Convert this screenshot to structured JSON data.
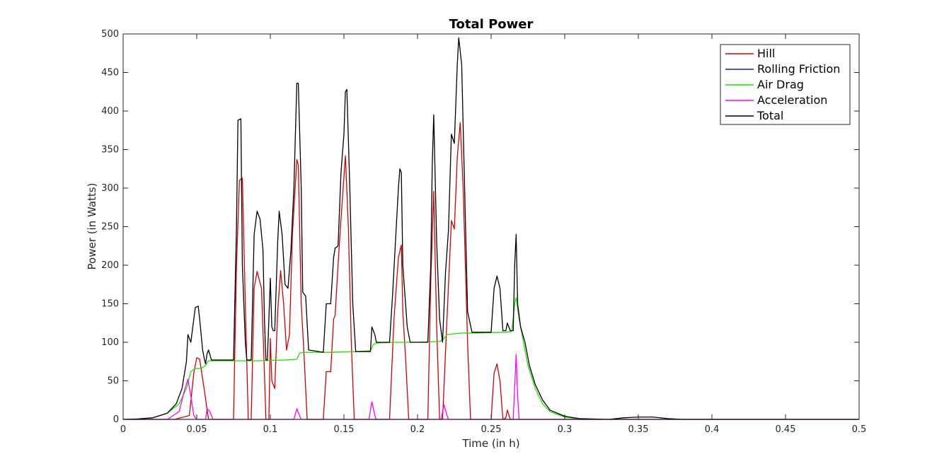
{
  "chart_data": {
    "type": "line",
    "title": "Total Power",
    "xlabel": "Time (in h)",
    "ylabel": "Power (in Watts)",
    "xlim": [
      0,
      0.5
    ],
    "ylim": [
      0,
      500
    ],
    "xticks": [
      0,
      0.05,
      0.1,
      0.15,
      0.2,
      0.25,
      0.3,
      0.35,
      0.4,
      0.45,
      0.5
    ],
    "xtick_labels": [
      "0",
      "0.05",
      "0.1",
      "0.15",
      "0.2",
      "0.25",
      "0.3",
      "0.35",
      "0.4",
      "0.45",
      "0.5"
    ],
    "yticks": [
      0,
      50,
      100,
      150,
      200,
      250,
      300,
      350,
      400,
      450,
      500
    ],
    "ytick_labels": [
      "0",
      "50",
      "100",
      "150",
      "200",
      "250",
      "300",
      "350",
      "400",
      "450",
      "500"
    ],
    "grid": false,
    "legend_position": "top-right",
    "series": [
      {
        "name": "Hill",
        "color": "#d40000",
        "points": [
          [
            0,
            0
          ],
          [
            0.035,
            0
          ],
          [
            0.045,
            5
          ],
          [
            0.048,
            60
          ],
          [
            0.05,
            80
          ],
          [
            0.052,
            78
          ],
          [
            0.055,
            40
          ],
          [
            0.058,
            0
          ],
          [
            0.075,
            0
          ],
          [
            0.077,
            200
          ],
          [
            0.079,
            310
          ],
          [
            0.081,
            313
          ],
          [
            0.083,
            150
          ],
          [
            0.085,
            0
          ],
          [
            0.087,
            0
          ],
          [
            0.089,
            170
          ],
          [
            0.091,
            192
          ],
          [
            0.094,
            170
          ],
          [
            0.096,
            60
          ],
          [
            0.097,
            0
          ],
          [
            0.099,
            0
          ],
          [
            0.1,
            105
          ],
          [
            0.101,
            50
          ],
          [
            0.103,
            40
          ],
          [
            0.105,
            140
          ],
          [
            0.107,
            193
          ],
          [
            0.109,
            150
          ],
          [
            0.111,
            90
          ],
          [
            0.113,
            110
          ],
          [
            0.115,
            240
          ],
          [
            0.118,
            337
          ],
          [
            0.119,
            330
          ],
          [
            0.121,
            150
          ],
          [
            0.123,
            80
          ],
          [
            0.125,
            0
          ],
          [
            0.136,
            0
          ],
          [
            0.138,
            62
          ],
          [
            0.141,
            62
          ],
          [
            0.143,
            130
          ],
          [
            0.144,
            135
          ],
          [
            0.146,
            200
          ],
          [
            0.148,
            260
          ],
          [
            0.151,
            342
          ],
          [
            0.153,
            250
          ],
          [
            0.155,
            100
          ],
          [
            0.157,
            0
          ],
          [
            0.181,
            0
          ],
          [
            0.184,
            130
          ],
          [
            0.187,
            210
          ],
          [
            0.189,
            226
          ],
          [
            0.19,
            140
          ],
          [
            0.192,
            75
          ],
          [
            0.194,
            0
          ],
          [
            0.207,
            0
          ],
          [
            0.209,
            180
          ],
          [
            0.211,
            296
          ],
          [
            0.213,
            120
          ],
          [
            0.215,
            0
          ],
          [
            0.217,
            0
          ],
          [
            0.22,
            130
          ],
          [
            0.223,
            258
          ],
          [
            0.225,
            247
          ],
          [
            0.227,
            340
          ],
          [
            0.229,
            385
          ],
          [
            0.231,
            300
          ],
          [
            0.234,
            100
          ],
          [
            0.236,
            0
          ],
          [
            0.25,
            0
          ],
          [
            0.252,
            60
          ],
          [
            0.254,
            72
          ],
          [
            0.256,
            50
          ],
          [
            0.258,
            0
          ],
          [
            0.26,
            2
          ],
          [
            0.261,
            12
          ],
          [
            0.263,
            0
          ],
          [
            0.5,
            0
          ]
        ]
      },
      {
        "name": "Rolling Friction",
        "color": "#1a1ab0",
        "points": [
          [
            0,
            0
          ],
          [
            0.5,
            0
          ]
        ]
      },
      {
        "name": "Air Drag",
        "color": "#1fe000",
        "points": [
          [
            0,
            0
          ],
          [
            0.01,
            0.5
          ],
          [
            0.02,
            2
          ],
          [
            0.03,
            8
          ],
          [
            0.038,
            20
          ],
          [
            0.043,
            40
          ],
          [
            0.046,
            62
          ],
          [
            0.049,
            66
          ],
          [
            0.053,
            66
          ],
          [
            0.056,
            70
          ],
          [
            0.058,
            76
          ],
          [
            0.07,
            76
          ],
          [
            0.09,
            76
          ],
          [
            0.11,
            77
          ],
          [
            0.118,
            78
          ],
          [
            0.12,
            86
          ],
          [
            0.123,
            87
          ],
          [
            0.14,
            87
          ],
          [
            0.16,
            88
          ],
          [
            0.168,
            89
          ],
          [
            0.17,
            97
          ],
          [
            0.172,
            99
          ],
          [
            0.185,
            100
          ],
          [
            0.2,
            100
          ],
          [
            0.215,
            101
          ],
          [
            0.218,
            105
          ],
          [
            0.22,
            110
          ],
          [
            0.225,
            111
          ],
          [
            0.23,
            112
          ],
          [
            0.24,
            112
          ],
          [
            0.26,
            113
          ],
          [
            0.264,
            114
          ],
          [
            0.266,
            150
          ],
          [
            0.267,
            158
          ],
          [
            0.269,
            130
          ],
          [
            0.272,
            100
          ],
          [
            0.275,
            70
          ],
          [
            0.28,
            40
          ],
          [
            0.285,
            20
          ],
          [
            0.29,
            10
          ],
          [
            0.3,
            3
          ],
          [
            0.31,
            0.5
          ],
          [
            0.33,
            0
          ],
          [
            0.5,
            0
          ]
        ]
      },
      {
        "name": "Acceleration",
        "color": "#ff00ff",
        "points": [
          [
            0,
            0
          ],
          [
            0.03,
            0
          ],
          [
            0.038,
            10
          ],
          [
            0.042,
            40
          ],
          [
            0.044,
            52
          ],
          [
            0.046,
            30
          ],
          [
            0.048,
            5
          ],
          [
            0.05,
            0
          ],
          [
            0.056,
            0
          ],
          [
            0.057,
            14
          ],
          [
            0.059,
            10
          ],
          [
            0.061,
            0
          ],
          [
            0.116,
            0
          ],
          [
            0.118,
            14
          ],
          [
            0.12,
            4
          ],
          [
            0.121,
            0
          ],
          [
            0.167,
            0
          ],
          [
            0.169,
            23
          ],
          [
            0.171,
            5
          ],
          [
            0.172,
            0
          ],
          [
            0.216,
            0
          ],
          [
            0.218,
            19
          ],
          [
            0.22,
            5
          ],
          [
            0.221,
            0
          ],
          [
            0.265,
            0
          ],
          [
            0.267,
            84
          ],
          [
            0.268,
            30
          ],
          [
            0.269,
            0
          ],
          [
            0.5,
            0
          ]
        ]
      },
      {
        "name": "Total",
        "color": "#000000",
        "points": [
          [
            0,
            0
          ],
          [
            0.01,
            0.5
          ],
          [
            0.02,
            2
          ],
          [
            0.03,
            8
          ],
          [
            0.036,
            20
          ],
          [
            0.04,
            40
          ],
          [
            0.043,
            75
          ],
          [
            0.044,
            110
          ],
          [
            0.046,
            100
          ],
          [
            0.048,
            130
          ],
          [
            0.049,
            145
          ],
          [
            0.051,
            147
          ],
          [
            0.052,
            130
          ],
          [
            0.054,
            90
          ],
          [
            0.055,
            80
          ],
          [
            0.056,
            72
          ],
          [
            0.057,
            85
          ],
          [
            0.058,
            90
          ],
          [
            0.06,
            77
          ],
          [
            0.075,
            77
          ],
          [
            0.077,
            250
          ],
          [
            0.078,
            388
          ],
          [
            0.08,
            390
          ],
          [
            0.081,
            200
          ],
          [
            0.083,
            100
          ],
          [
            0.084,
            77
          ],
          [
            0.087,
            77
          ],
          [
            0.089,
            240
          ],
          [
            0.091,
            270
          ],
          [
            0.093,
            260
          ],
          [
            0.095,
            220
          ],
          [
            0.096,
            130
          ],
          [
            0.097,
            77
          ],
          [
            0.098,
            77
          ],
          [
            0.1,
            183
          ],
          [
            0.101,
            120
          ],
          [
            0.102,
            115
          ],
          [
            0.103,
            115
          ],
          [
            0.105,
            230
          ],
          [
            0.106,
            270
          ],
          [
            0.108,
            240
          ],
          [
            0.11,
            175
          ],
          [
            0.112,
            170
          ],
          [
            0.114,
            220
          ],
          [
            0.116,
            300
          ],
          [
            0.118,
            436
          ],
          [
            0.119,
            436
          ],
          [
            0.121,
            300
          ],
          [
            0.122,
            165
          ],
          [
            0.124,
            160
          ],
          [
            0.126,
            90
          ],
          [
            0.136,
            87
          ],
          [
            0.138,
            150
          ],
          [
            0.141,
            150
          ],
          [
            0.143,
            210
          ],
          [
            0.144,
            222
          ],
          [
            0.146,
            225
          ],
          [
            0.148,
            320
          ],
          [
            0.15,
            370
          ],
          [
            0.151,
            425
          ],
          [
            0.152,
            428
          ],
          [
            0.154,
            300
          ],
          [
            0.156,
            150
          ],
          [
            0.158,
            88
          ],
          [
            0.165,
            88
          ],
          [
            0.168,
            88
          ],
          [
            0.169,
            120
          ],
          [
            0.171,
            110
          ],
          [
            0.172,
            100
          ],
          [
            0.181,
            100
          ],
          [
            0.183,
            160
          ],
          [
            0.185,
            230
          ],
          [
            0.187,
            300
          ],
          [
            0.188,
            325
          ],
          [
            0.189,
            320
          ],
          [
            0.19,
            200
          ],
          [
            0.191,
            173
          ],
          [
            0.193,
            120
          ],
          [
            0.195,
            100
          ],
          [
            0.207,
            100
          ],
          [
            0.209,
            200
          ],
          [
            0.21,
            330
          ],
          [
            0.211,
            395
          ],
          [
            0.213,
            230
          ],
          [
            0.215,
            130
          ],
          [
            0.217,
            100
          ],
          [
            0.219,
            190
          ],
          [
            0.221,
            245
          ],
          [
            0.223,
            370
          ],
          [
            0.225,
            358
          ],
          [
            0.227,
            460
          ],
          [
            0.228,
            495
          ],
          [
            0.23,
            460
          ],
          [
            0.232,
            300
          ],
          [
            0.234,
            140
          ],
          [
            0.237,
            113
          ],
          [
            0.25,
            113
          ],
          [
            0.252,
            170
          ],
          [
            0.254,
            186
          ],
          [
            0.256,
            170
          ],
          [
            0.258,
            115
          ],
          [
            0.26,
            115
          ],
          [
            0.261,
            125
          ],
          [
            0.263,
            115
          ],
          [
            0.265,
            115
          ],
          [
            0.266,
            200
          ],
          [
            0.267,
            240
          ],
          [
            0.268,
            150
          ],
          [
            0.27,
            120
          ],
          [
            0.273,
            100
          ],
          [
            0.276,
            70
          ],
          [
            0.28,
            45
          ],
          [
            0.285,
            25
          ],
          [
            0.29,
            12
          ],
          [
            0.3,
            4
          ],
          [
            0.31,
            1
          ],
          [
            0.33,
            0
          ],
          [
            0.34,
            2
          ],
          [
            0.35,
            3
          ],
          [
            0.36,
            3
          ],
          [
            0.37,
            1
          ],
          [
            0.38,
            0
          ],
          [
            0.5,
            0
          ]
        ]
      }
    ]
  }
}
